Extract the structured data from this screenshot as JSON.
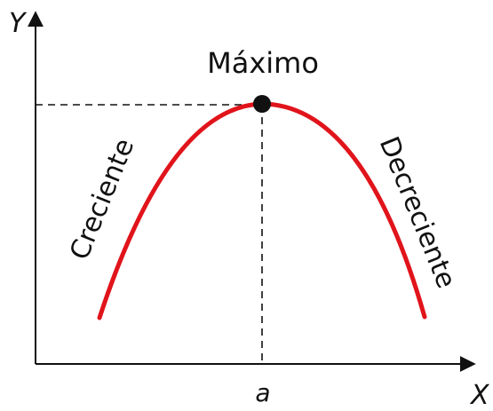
{
  "diagram": {
    "axes": {
      "x_label": "X",
      "y_label": "Y"
    },
    "peak": {
      "label": "Máximo",
      "x_tick_label": "a"
    },
    "segments": {
      "increasing_label": "Creciente",
      "decreasing_label": "Decreciente"
    },
    "colors": {
      "curve": "#e1141b",
      "axes": "#111111",
      "guides": "#111111",
      "point": "#111111"
    },
    "guides": {
      "style": "dashed"
    }
  }
}
